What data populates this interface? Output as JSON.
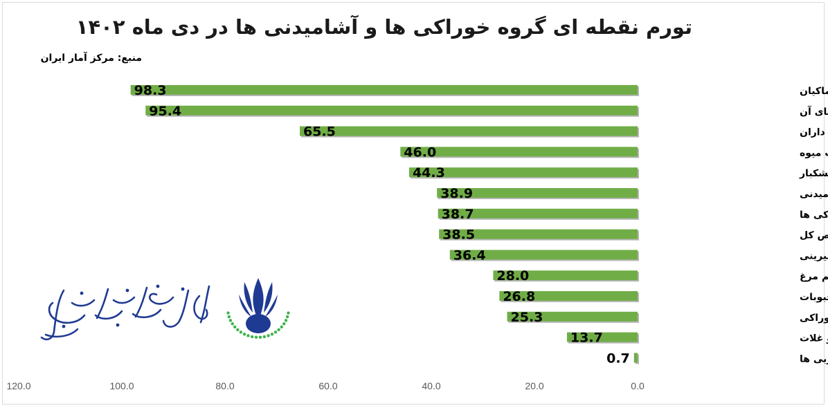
{
  "title": "تورم نقطه ای گروه خوراکی ها و آشامیدنی ها در دی ماه ۱۴۰۲",
  "source": "منبع: مرکز آمار ایران",
  "colors": {
    "bar": "#70ad47",
    "bar_shadow": "#b7b7b7",
    "text": "#000000",
    "axis_label": "#595959"
  },
  "logo": {
    "text": "انجمن صنایع فرآورده های لبنی ایران",
    "icon": "iran-dairy-association-emblem"
  },
  "chart_data": {
    "type": "bar",
    "orientation": "horizontal",
    "x_reversed": true,
    "categories": [
      "گوشت قرمز و گوشت ماکیان",
      "گوشت قرمز، سفید و فرآورده های آن",
      "ماهی ها و صدف داران",
      "چای، قهوه، کاکائو، نوشابه و آب میوه",
      "میوه و خشکبار",
      "شاخص خوراکی ها و آشامیدنی",
      "شاخص خوراکی ها",
      "شاخص کل",
      "شکر، مربا، عسل، شکلات و شیرینی",
      "شیر، پنیر و تخم مرغ",
      "سبزیجات و حبوبات",
      "سایر محصولات خوراکی",
      "نان و غلات",
      "روغن ها و چربی ها"
    ],
    "values": [
      98.3,
      95.4,
      65.5,
      46.0,
      44.3,
      38.9,
      38.7,
      38.5,
      36.4,
      28.0,
      26.8,
      25.3,
      13.7,
      0.7
    ],
    "data_labels": [
      "98.3",
      "95.4",
      "65.5",
      "46.0",
      "44.3",
      "38.9",
      "38.7",
      "38.5",
      "36.4",
      "28.0",
      "26.8",
      "25.3",
      "13.7",
      "0.7"
    ],
    "xlim": [
      0,
      120
    ],
    "x_ticks": [
      "120.0",
      "100.0",
      "80.0",
      "60.0",
      "40.0",
      "20.0",
      "0.0"
    ],
    "x_tick_values": [
      120,
      100,
      80,
      60,
      40,
      20,
      0
    ],
    "grid": false,
    "legend": "none"
  }
}
